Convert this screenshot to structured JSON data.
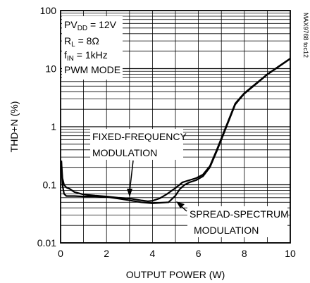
{
  "chart_data": {
    "type": "line",
    "title": "",
    "xlabel": "OUTPUT POWER (W)",
    "ylabel": "THD+N (%)",
    "xlim": [
      0,
      10
    ],
    "ylim": [
      0.01,
      100
    ],
    "yscale": "log",
    "x_ticks": [
      0,
      2,
      4,
      6,
      8,
      10
    ],
    "x_tick_labels": [
      "0",
      "2",
      "4",
      "6",
      "8",
      "10"
    ],
    "y_ticks": [
      0.01,
      0.1,
      1,
      10,
      100
    ],
    "y_tick_labels": [
      "0.01",
      "0.1",
      "1",
      "10",
      "100"
    ],
    "grid": true,
    "figure_id": "MAX9768 toc12",
    "conditions": {
      "pvdd": "PV",
      "pvdd_sub": "DD",
      "pvdd_val": " = 12V",
      "rl": "R",
      "rl_sub": "L",
      "rl_val": " = 8Ω",
      "fin": "f",
      "fin_sub": "IN",
      "fin_val": " = 1kHz",
      "mode": "PWM MODE"
    },
    "series": [
      {
        "name": "FIXED-FREQUENCY MODULATION",
        "x": [
          0.03,
          0.08,
          0.15,
          0.25,
          0.4,
          0.6,
          1.0,
          1.5,
          2.0,
          2.5,
          3.0,
          3.5,
          3.8,
          4.0,
          4.3,
          4.6,
          5.0,
          5.3,
          5.6,
          5.9,
          6.2,
          6.5,
          6.8,
          7.2,
          7.6,
          7.8,
          8.0,
          8.5,
          9.0,
          9.5,
          10.0
        ],
        "y": [
          0.26,
          0.13,
          0.1,
          0.09,
          0.085,
          0.075,
          0.068,
          0.065,
          0.063,
          0.06,
          0.058,
          0.054,
          0.052,
          0.053,
          0.058,
          0.068,
          0.088,
          0.11,
          0.12,
          0.13,
          0.15,
          0.21,
          0.4,
          1.0,
          2.5,
          3.1,
          3.8,
          5.5,
          8.0,
          11.0,
          15.0
        ]
      },
      {
        "name": "SPREAD-SPECTRUM MODULATION",
        "x": [
          0.03,
          0.08,
          0.15,
          0.25,
          0.4,
          0.6,
          1.0,
          1.5,
          2.0,
          2.5,
          3.0,
          3.5,
          4.0,
          4.3,
          4.7,
          5.0,
          5.2,
          5.4,
          5.6,
          5.9,
          6.2,
          6.5,
          6.8,
          7.2,
          7.6,
          7.8,
          8.0,
          8.5,
          9.0,
          9.5,
          10.0
        ],
        "y": [
          0.26,
          0.1,
          0.07,
          0.064,
          0.064,
          0.064,
          0.063,
          0.063,
          0.062,
          0.058,
          0.054,
          0.05,
          0.048,
          0.049,
          0.05,
          0.065,
          0.085,
          0.1,
          0.11,
          0.12,
          0.14,
          0.2,
          0.38,
          0.95,
          2.4,
          3.0,
          3.7,
          5.4,
          7.9,
          10.8,
          14.8
        ]
      }
    ],
    "annotations": [
      {
        "line1": "FIXED-FREQUENCY",
        "line2": "MODULATION",
        "points_to_x": 3.0,
        "points_to_y": 0.055
      },
      {
        "line1": "SPREAD-SPECTRUM",
        "line2": "MODULATION",
        "points_to_x": 5.0,
        "points_to_y": 0.085
      }
    ]
  }
}
